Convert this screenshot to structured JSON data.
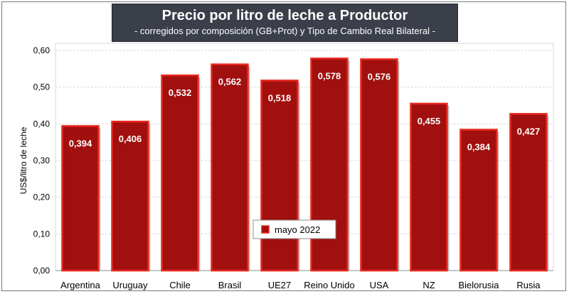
{
  "chart_data": {
    "type": "bar",
    "title": "Precio por litro de leche a Productor",
    "subtitle": "-  corregidos por composición (GB+Prot) y Tipo de Cambio Real Bilateral -",
    "xlabel": "",
    "ylabel": "US$/litro de leche",
    "ylim": [
      0,
      0.6
    ],
    "yticks": [
      "0,00",
      "0,10",
      "0,20",
      "0,30",
      "0,40",
      "0,50",
      "0,60"
    ],
    "categories": [
      "Argentina",
      "Uruguay",
      "Chile",
      "Brasil",
      "UE27",
      "Reino Unido",
      "USA",
      "NZ",
      "Bielorusia",
      "Rusia"
    ],
    "series": [
      {
        "name": "mayo 2022",
        "values": [
          0.394,
          0.406,
          0.532,
          0.562,
          0.518,
          0.578,
          0.576,
          0.455,
          0.384,
          0.427
        ],
        "labels": [
          "0,394",
          "0,406",
          "0,532",
          "0,562",
          "0,518",
          "0,578",
          "0,576",
          "0,455",
          "0,384",
          "0,427"
        ],
        "color": "#a10f0f",
        "edge_color": "#e8281e"
      }
    ],
    "grid": true,
    "legend_position": "bottom-center"
  }
}
